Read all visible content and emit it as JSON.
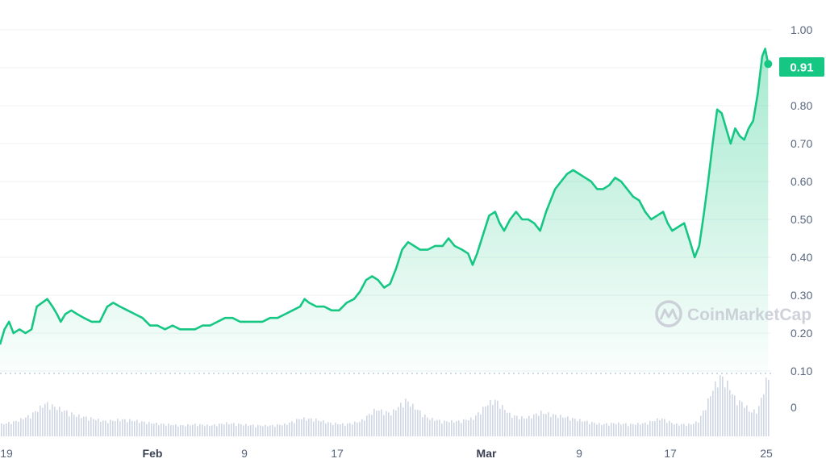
{
  "chart_data": {
    "type": "area",
    "y_ticks": [
      "1.00",
      "0.90",
      "0.80",
      "0.70",
      "0.60",
      "0.50",
      "0.40",
      "0.30",
      "0.20",
      "0.10"
    ],
    "volume_tick": "0",
    "x_ticks": [
      {
        "label": "19",
        "bold": false
      },
      {
        "label": "Feb",
        "bold": true
      },
      {
        "label": "9",
        "bold": false
      },
      {
        "label": "17",
        "bold": false
      },
      {
        "label": "Mar",
        "bold": true
      },
      {
        "label": "9",
        "bold": false
      },
      {
        "label": "17",
        "bold": false
      },
      {
        "label": "25",
        "bold": false
      }
    ],
    "current_value": "0.91",
    "watermark": "CoinMarketCap",
    "ylim": [
      0.1,
      1.0
    ],
    "grid": true,
    "colors": {
      "line": "#16c784",
      "badge": "#16c784",
      "volume": "#cfd6e4"
    },
    "price_series": [
      [
        0,
        0.17
      ],
      [
        0.6,
        0.21
      ],
      [
        1.2,
        0.23
      ],
      [
        1.8,
        0.2
      ],
      [
        2.6,
        0.21
      ],
      [
        3.4,
        0.2
      ],
      [
        4.2,
        0.21
      ],
      [
        4.9,
        0.27
      ],
      [
        5.6,
        0.28
      ],
      [
        6.3,
        0.29
      ],
      [
        7.0,
        0.27
      ],
      [
        7.6,
        0.25
      ],
      [
        8.1,
        0.23
      ],
      [
        8.7,
        0.25
      ],
      [
        9.5,
        0.26
      ],
      [
        10.3,
        0.25
      ],
      [
        11.2,
        0.24
      ],
      [
        12.2,
        0.23
      ],
      [
        13.3,
        0.23
      ],
      [
        14.3,
        0.27
      ],
      [
        15.1,
        0.28
      ],
      [
        16.0,
        0.27
      ],
      [
        17.0,
        0.26
      ],
      [
        18.0,
        0.25
      ],
      [
        19.0,
        0.24
      ],
      [
        20.0,
        0.22
      ],
      [
        21.0,
        0.22
      ],
      [
        22.0,
        0.21
      ],
      [
        23.0,
        0.22
      ],
      [
        24.0,
        0.21
      ],
      [
        25.0,
        0.21
      ],
      [
        26.0,
        0.21
      ],
      [
        27.0,
        0.22
      ],
      [
        28.0,
        0.22
      ],
      [
        29.0,
        0.23
      ],
      [
        30.0,
        0.24
      ],
      [
        31.0,
        0.24
      ],
      [
        32.0,
        0.23
      ],
      [
        33.0,
        0.23
      ],
      [
        34.0,
        0.23
      ],
      [
        35.0,
        0.23
      ],
      [
        36.0,
        0.24
      ],
      [
        37.0,
        0.24
      ],
      [
        38.0,
        0.25
      ],
      [
        39.0,
        0.26
      ],
      [
        40.0,
        0.27
      ],
      [
        40.6,
        0.29
      ],
      [
        41.2,
        0.28
      ],
      [
        42.2,
        0.27
      ],
      [
        43.2,
        0.27
      ],
      [
        44.2,
        0.26
      ],
      [
        45.2,
        0.26
      ],
      [
        46.2,
        0.28
      ],
      [
        47.2,
        0.29
      ],
      [
        48.0,
        0.31
      ],
      [
        48.8,
        0.34
      ],
      [
        49.6,
        0.35
      ],
      [
        50.4,
        0.34
      ],
      [
        51.2,
        0.32
      ],
      [
        52.0,
        0.33
      ],
      [
        52.8,
        0.37
      ],
      [
        53.6,
        0.42
      ],
      [
        54.4,
        0.44
      ],
      [
        55.2,
        0.43
      ],
      [
        56.0,
        0.42
      ],
      [
        57.0,
        0.42
      ],
      [
        58.0,
        0.43
      ],
      [
        59.0,
        0.43
      ],
      [
        59.8,
        0.45
      ],
      [
        60.6,
        0.43
      ],
      [
        61.6,
        0.42
      ],
      [
        62.4,
        0.41
      ],
      [
        63.0,
        0.38
      ],
      [
        63.6,
        0.41
      ],
      [
        64.4,
        0.46
      ],
      [
        65.2,
        0.51
      ],
      [
        66.0,
        0.52
      ],
      [
        66.6,
        0.49
      ],
      [
        67.2,
        0.47
      ],
      [
        68.0,
        0.5
      ],
      [
        68.8,
        0.52
      ],
      [
        69.6,
        0.5
      ],
      [
        70.4,
        0.5
      ],
      [
        71.2,
        0.49
      ],
      [
        72.0,
        0.47
      ],
      [
        72.8,
        0.52
      ],
      [
        73.4,
        0.55
      ],
      [
        74.0,
        0.58
      ],
      [
        74.8,
        0.6
      ],
      [
        75.6,
        0.62
      ],
      [
        76.4,
        0.63
      ],
      [
        77.2,
        0.62
      ],
      [
        78.0,
        0.61
      ],
      [
        78.8,
        0.6
      ],
      [
        79.6,
        0.58
      ],
      [
        80.4,
        0.58
      ],
      [
        81.2,
        0.59
      ],
      [
        82.0,
        0.61
      ],
      [
        82.8,
        0.6
      ],
      [
        83.6,
        0.58
      ],
      [
        84.4,
        0.56
      ],
      [
        85.2,
        0.55
      ],
      [
        86.0,
        0.52
      ],
      [
        86.8,
        0.5
      ],
      [
        87.6,
        0.51
      ],
      [
        88.4,
        0.52
      ],
      [
        89.0,
        0.49
      ],
      [
        89.6,
        0.47
      ],
      [
        90.4,
        0.48
      ],
      [
        91.2,
        0.49
      ],
      [
        92.0,
        0.44
      ],
      [
        92.6,
        0.4
      ],
      [
        93.2,
        0.43
      ],
      [
        93.8,
        0.51
      ],
      [
        94.4,
        0.6
      ],
      [
        95.0,
        0.7
      ],
      [
        95.6,
        0.79
      ],
      [
        96.2,
        0.78
      ],
      [
        96.8,
        0.74
      ],
      [
        97.4,
        0.7
      ],
      [
        98.0,
        0.74
      ],
      [
        98.6,
        0.72
      ],
      [
        99.2,
        0.71
      ],
      [
        99.8,
        0.74
      ],
      [
        100.4,
        0.76
      ],
      [
        101.0,
        0.83
      ],
      [
        101.6,
        0.93
      ],
      [
        102.0,
        0.95
      ],
      [
        102.4,
        0.91
      ]
    ],
    "volume_series": [
      [
        0,
        0.2
      ],
      [
        2,
        0.25
      ],
      [
        4,
        0.35
      ],
      [
        6,
        0.55
      ],
      [
        8,
        0.45
      ],
      [
        10,
        0.35
      ],
      [
        12,
        0.3
      ],
      [
        14,
        0.25
      ],
      [
        16,
        0.28
      ],
      [
        18,
        0.26
      ],
      [
        20,
        0.22
      ],
      [
        22,
        0.2
      ],
      [
        24,
        0.18
      ],
      [
        26,
        0.2
      ],
      [
        28,
        0.18
      ],
      [
        30,
        0.22
      ],
      [
        32,
        0.2
      ],
      [
        34,
        0.18
      ],
      [
        36,
        0.18
      ],
      [
        38,
        0.2
      ],
      [
        40,
        0.3
      ],
      [
        42,
        0.28
      ],
      [
        44,
        0.22
      ],
      [
        46,
        0.2
      ],
      [
        48,
        0.25
      ],
      [
        50,
        0.45
      ],
      [
        52,
        0.38
      ],
      [
        54,
        0.6
      ],
      [
        55,
        0.5
      ],
      [
        57,
        0.3
      ],
      [
        59,
        0.25
      ],
      [
        61,
        0.25
      ],
      [
        63,
        0.3
      ],
      [
        65,
        0.55
      ],
      [
        66,
        0.6
      ],
      [
        68,
        0.35
      ],
      [
        70,
        0.3
      ],
      [
        72,
        0.4
      ],
      [
        74,
        0.35
      ],
      [
        76,
        0.3
      ],
      [
        78,
        0.25
      ],
      [
        80,
        0.2
      ],
      [
        82,
        0.22
      ],
      [
        84,
        0.2
      ],
      [
        86,
        0.22
      ],
      [
        88,
        0.3
      ],
      [
        90,
        0.2
      ],
      [
        92,
        0.2
      ],
      [
        93,
        0.25
      ],
      [
        94,
        0.5
      ],
      [
        95,
        0.8
      ],
      [
        96,
        1.0
      ],
      [
        97,
        0.85
      ],
      [
        98,
        0.6
      ],
      [
        99,
        0.55
      ],
      [
        100,
        0.4
      ],
      [
        101,
        0.45
      ],
      [
        102,
        0.9
      ],
      [
        102.4,
        1.0
      ]
    ]
  }
}
